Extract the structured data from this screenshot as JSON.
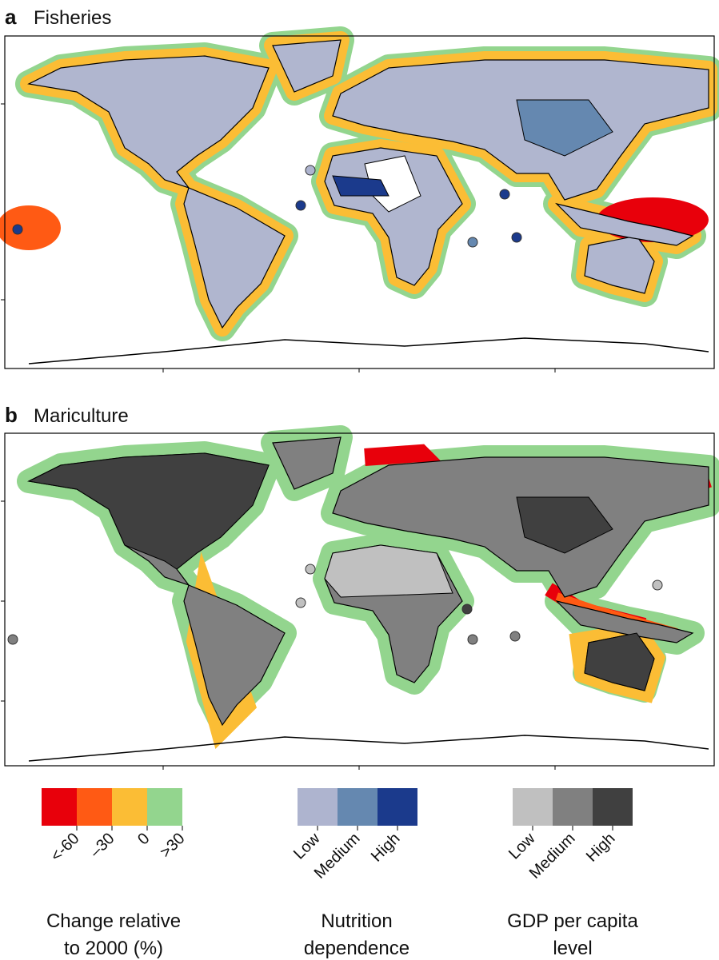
{
  "panels": [
    {
      "letter": "a",
      "title": "Fisheries"
    },
    {
      "letter": "b",
      "title": "Mariculture"
    }
  ],
  "legends": [
    {
      "title_lines": [
        "Change relative",
        "to 2000 (%)"
      ],
      "labels": [
        "<-60",
        "–30",
        "0",
        ">30"
      ],
      "colors": [
        "#e8000b",
        "#ff5a14",
        "#fbbd35",
        "#93d58e"
      ]
    },
    {
      "title_lines": [
        "Nutrition",
        "dependence"
      ],
      "labels": [
        "Low",
        "Medium",
        "High"
      ],
      "colors": [
        "#aeb4cf",
        "#6588b0",
        "#1b3a8c"
      ]
    },
    {
      "title_lines": [
        "GDP per capita",
        "level"
      ],
      "labels": [
        "Low",
        "Medium",
        "High"
      ],
      "colors": [
        "#c0c0c0",
        "#808080",
        "#404040"
      ]
    }
  ]
}
